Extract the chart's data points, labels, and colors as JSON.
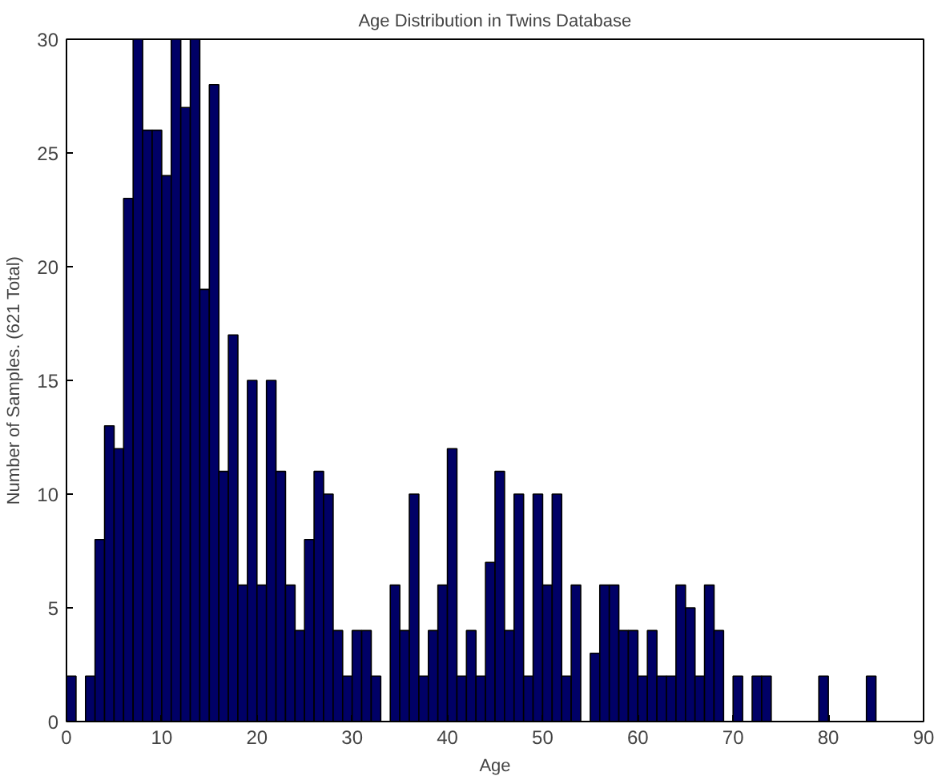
{
  "chart_data": {
    "type": "histogram",
    "title": "Age Distribution in Twins Database",
    "xlabel": "Age",
    "ylabel": "Number of Samples. (621 Total)",
    "bins": [
      0,
      1,
      2,
      3,
      4,
      5,
      6,
      7,
      8,
      9,
      10,
      11,
      12,
      13,
      14,
      15,
      16,
      17,
      18,
      19,
      20,
      21,
      22,
      23,
      24,
      25,
      26,
      27,
      28,
      29,
      30,
      31,
      32,
      33,
      34,
      35,
      36,
      37,
      38,
      39,
      40,
      41,
      42,
      43,
      44,
      45,
      46,
      47,
      48,
      49,
      50,
      51,
      52,
      53,
      54,
      55,
      56,
      57,
      58,
      59,
      60,
      61,
      62,
      63,
      64,
      65,
      66,
      67,
      68,
      69,
      70,
      71,
      72,
      73,
      74,
      75,
      76,
      77,
      78,
      79,
      80,
      81,
      82,
      83,
      84,
      85
    ],
    "values": [
      2,
      0,
      2,
      8,
      13,
      12,
      23,
      30,
      26,
      26,
      24,
      30,
      27,
      30,
      19,
      28,
      11,
      17,
      6,
      15,
      6,
      15,
      11,
      6,
      4,
      8,
      11,
      10,
      4,
      2,
      4,
      4,
      2,
      0,
      6,
      4,
      10,
      2,
      4,
      6,
      12,
      2,
      4,
      2,
      7,
      11,
      4,
      10,
      2,
      10,
      6,
      10,
      2,
      6,
      0,
      3,
      6,
      6,
      4,
      4,
      2,
      4,
      2,
      2,
      6,
      5,
      2,
      6,
      4,
      0,
      2,
      0,
      2,
      2,
      0,
      0,
      0,
      0,
      0,
      2,
      0,
      0,
      0,
      0,
      2
    ],
    "color": "#000066",
    "xlim": [
      0,
      90
    ],
    "ylim": [
      0,
      30
    ],
    "xticks": [
      0,
      10,
      20,
      30,
      40,
      50,
      60,
      70,
      80,
      90
    ],
    "yticks": [
      0,
      5,
      10,
      15,
      20,
      25,
      30
    ],
    "grid": false
  }
}
